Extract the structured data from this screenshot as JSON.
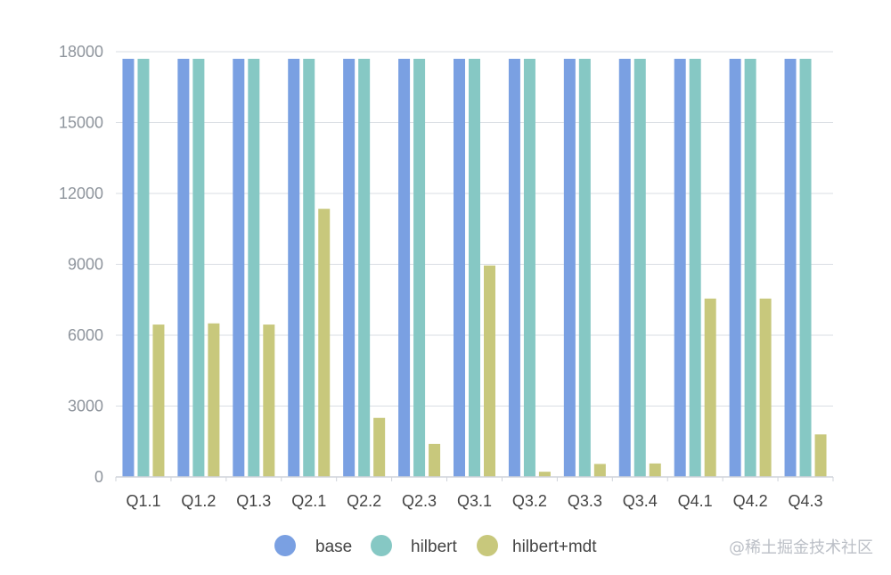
{
  "chart_data": {
    "type": "bar",
    "categories": [
      "Q1.1",
      "Q1.2",
      "Q1.3",
      "Q2.1",
      "Q2.2",
      "Q2.3",
      "Q3.1",
      "Q3.2",
      "Q3.3",
      "Q3.4",
      "Q4.1",
      "Q4.2",
      "Q4.3"
    ],
    "series": [
      {
        "name": "base",
        "color": "#7aa0e2",
        "values": [
          17700,
          17700,
          17700,
          17700,
          17700,
          17700,
          17700,
          17700,
          17700,
          17700,
          17700,
          17700,
          17700
        ]
      },
      {
        "name": "hilbert",
        "color": "#86c8c4",
        "values": [
          17700,
          17700,
          17700,
          17700,
          17700,
          17700,
          17700,
          17700,
          17700,
          17700,
          17700,
          17700,
          17700
        ]
      },
      {
        "name": "hilbert+mdt",
        "color": "#c8c87c",
        "values": [
          6450,
          6500,
          6450,
          11350,
          2500,
          1400,
          8950,
          220,
          550,
          570,
          7550,
          7550,
          1800
        ]
      }
    ],
    "y_ticks": [
      "0",
      "3000",
      "6000",
      "9000",
      "12000",
      "15000",
      "18000"
    ],
    "ylim": [
      0,
      18000
    ],
    "grid": true,
    "legend_position": "bottom-center",
    "axis_color": "#cfd3da",
    "grid_color": "#d9dde3",
    "label_color_y": "#8e949c",
    "label_color_x": "#444444",
    "legend_text_color": "#444444"
  },
  "watermark": "@稀土掘金技术社区"
}
